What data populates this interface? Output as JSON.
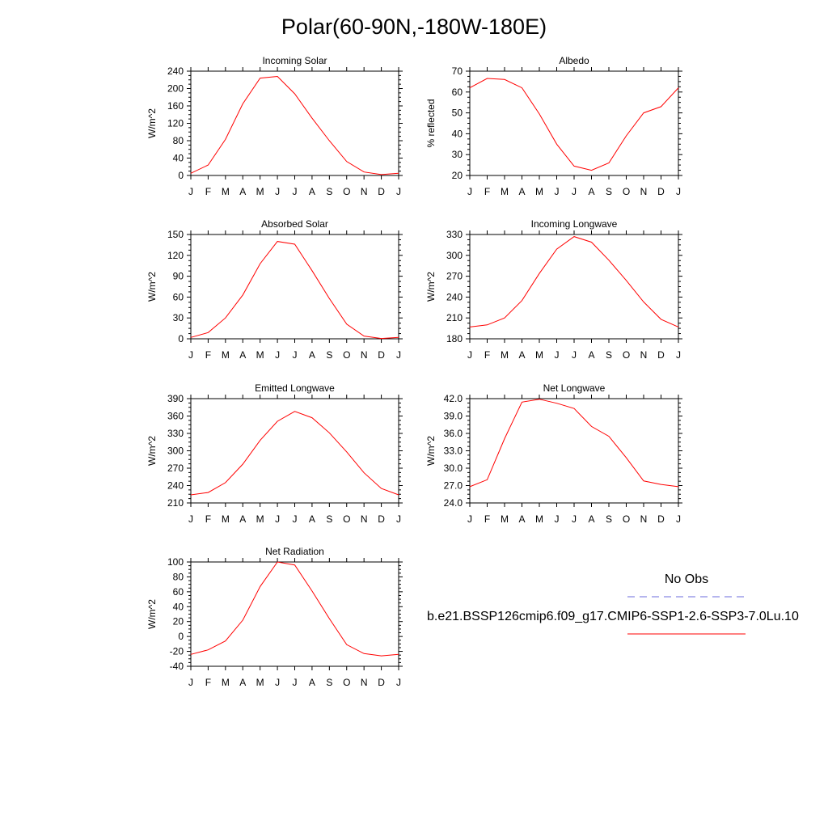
{
  "title": "Polar(60-90N,-180W-180E)",
  "months": [
    "J",
    "F",
    "M",
    "A",
    "M",
    "J",
    "J",
    "A",
    "S",
    "O",
    "N",
    "D",
    "J"
  ],
  "colors": {
    "model": "#ff0000",
    "obs": "#6b6bdd",
    "axis": "#000000"
  },
  "legend": {
    "obs_label": "No Obs",
    "model_label": "b.e21.BSSP126cmip6.f09_g17.CMIP6-SSP1-2.6-SSP3-7.0Lu.10"
  },
  "chart_data": [
    {
      "type": "line",
      "title": "Incoming Solar",
      "ylabel": "W/m^2",
      "ylim": [
        0,
        240
      ],
      "yticks": [
        "0",
        "40",
        "80",
        "120",
        "160",
        "200",
        "240"
      ],
      "categories": [
        "J",
        "F",
        "M",
        "A",
        "M",
        "J",
        "J",
        "A",
        "S",
        "O",
        "N",
        "D",
        "J"
      ],
      "series": [
        {
          "values": [
            5,
            24,
            83,
            165,
            224,
            228,
            188,
            132,
            80,
            32,
            8,
            2,
            5
          ]
        }
      ]
    },
    {
      "type": "line",
      "title": "Albedo",
      "ylabel": "% reflected",
      "ylim": [
        20,
        70
      ],
      "yticks": [
        "20",
        "30",
        "40",
        "50",
        "60",
        "70"
      ],
      "categories": [
        "J",
        "F",
        "M",
        "A",
        "M",
        "J",
        "J",
        "A",
        "S",
        "O",
        "N",
        "D",
        "J"
      ],
      "series": [
        {
          "values": [
            62,
            66.5,
            66,
            62,
            49.5,
            35,
            24.5,
            22.5,
            26,
            39,
            50,
            53,
            62
          ]
        }
      ]
    },
    {
      "type": "line",
      "title": "Absorbed Solar",
      "ylabel": "W/m^2",
      "ylim": [
        0,
        150
      ],
      "yticks": [
        "0",
        "30",
        "60",
        "90",
        "120",
        "150"
      ],
      "categories": [
        "J",
        "F",
        "M",
        "A",
        "M",
        "J",
        "J",
        "A",
        "S",
        "O",
        "N",
        "D",
        "J"
      ],
      "series": [
        {
          "values": [
            2,
            9,
            30,
            63,
            108,
            140,
            136,
            98,
            58,
            21,
            4,
            0.5,
            2
          ]
        }
      ]
    },
    {
      "type": "line",
      "title": "Incoming Longwave",
      "ylabel": "W/m^2",
      "ylim": [
        180,
        330
      ],
      "yticks": [
        "180",
        "210",
        "240",
        "270",
        "300",
        "330"
      ],
      "categories": [
        "J",
        "F",
        "M",
        "A",
        "M",
        "J",
        "J",
        "A",
        "S",
        "O",
        "N",
        "D",
        "J"
      ],
      "series": [
        {
          "values": [
            197,
            200,
            210,
            235,
            274,
            309,
            327,
            319,
            293,
            264,
            233,
            208,
            197
          ]
        }
      ]
    },
    {
      "type": "line",
      "title": "Emitted Longwave",
      "ylabel": "W/m^2",
      "ylim": [
        210,
        390
      ],
      "yticks": [
        "210",
        "240",
        "270",
        "300",
        "330",
        "360",
        "390"
      ],
      "categories": [
        "J",
        "F",
        "M",
        "A",
        "M",
        "J",
        "J",
        "A",
        "S",
        "O",
        "N",
        "D",
        "J"
      ],
      "series": [
        {
          "values": [
            224,
            228,
            245,
            277,
            318,
            351,
            368,
            357,
            331,
            298,
            262,
            235,
            224
          ]
        }
      ]
    },
    {
      "type": "line",
      "title": "Net Longwave",
      "ylabel": "W/m^2",
      "ylim": [
        24,
        42
      ],
      "yticks": [
        "24.0",
        "27.0",
        "30.0",
        "33.0",
        "36.0",
        "39.0",
        "42.0"
      ],
      "categories": [
        "J",
        "F",
        "M",
        "A",
        "M",
        "J",
        "J",
        "A",
        "S",
        "O",
        "N",
        "D",
        "J"
      ],
      "series": [
        {
          "values": [
            26.8,
            28.0,
            35.1,
            41.4,
            41.9,
            41.2,
            40.3,
            37.2,
            35.5,
            31.8,
            27.8,
            27.2,
            26.8
          ]
        }
      ]
    },
    {
      "type": "line",
      "title": "Net Radiation",
      "ylabel": "W/m^2",
      "ylim": [
        -40,
        100
      ],
      "yticks": [
        "-40",
        "-20",
        "0",
        "20",
        "40",
        "60",
        "80",
        "100"
      ],
      "categories": [
        "J",
        "F",
        "M",
        "A",
        "M",
        "J",
        "J",
        "A",
        "S",
        "O",
        "N",
        "D",
        "J"
      ],
      "series": [
        {
          "values": [
            -24,
            -18,
            -6,
            22,
            67,
            100,
            96,
            61,
            24,
            -11,
            -23,
            -26,
            -24
          ]
        }
      ]
    }
  ]
}
